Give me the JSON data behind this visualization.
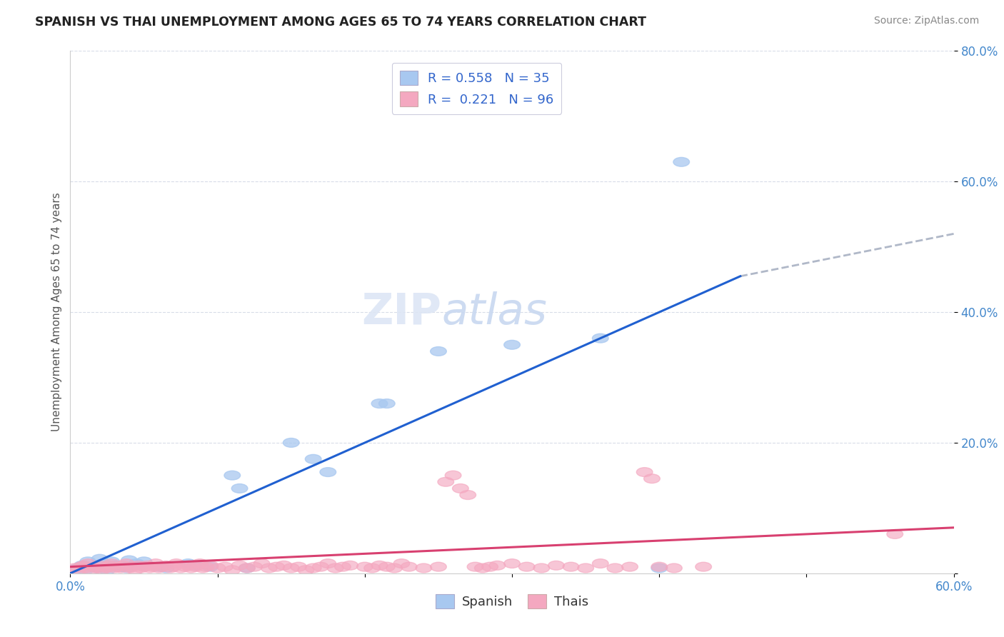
{
  "title": "SPANISH VS THAI UNEMPLOYMENT AMONG AGES 65 TO 74 YEARS CORRELATION CHART",
  "source": "Source: ZipAtlas.com",
  "ylabel": "Unemployment Among Ages 65 to 74 years",
  "xlim": [
    0.0,
    0.6
  ],
  "ylim": [
    0.0,
    0.8
  ],
  "xticks": [
    0.0,
    0.1,
    0.2,
    0.3,
    0.4,
    0.5,
    0.6
  ],
  "xticklabels": [
    "0.0%",
    "",
    "",
    "",
    "",
    "",
    "60.0%"
  ],
  "yticks": [
    0.0,
    0.2,
    0.4,
    0.6,
    0.8
  ],
  "yticklabels": [
    "",
    "20.0%",
    "40.0%",
    "60.0%",
    "80.0%"
  ],
  "spanish_color": "#a8c8f0",
  "thai_color": "#f4a8c0",
  "spanish_line_color": "#2060d0",
  "thai_line_color": "#d84070",
  "dashed_line_color": "#b0b8c8",
  "legend_R_spanish": "0.558",
  "legend_N_spanish": "35",
  "legend_R_thai": "0.221",
  "legend_N_thai": "96",
  "watermark_zip": "ZIP",
  "watermark_atlas": "atlas",
  "spanish_line": [
    [
      0.0,
      0.0
    ],
    [
      0.455,
      0.455
    ]
  ],
  "spanish_dash_line": [
    [
      0.455,
      0.455
    ],
    [
      0.6,
      0.52
    ]
  ],
  "thai_line": [
    [
      0.0,
      0.01
    ],
    [
      0.6,
      0.07
    ]
  ],
  "spanish_points": [
    [
      0.005,
      0.008
    ],
    [
      0.008,
      0.012
    ],
    [
      0.01,
      0.005
    ],
    [
      0.012,
      0.018
    ],
    [
      0.015,
      0.01
    ],
    [
      0.018,
      0.008
    ],
    [
      0.02,
      0.022
    ],
    [
      0.022,
      0.015
    ],
    [
      0.025,
      0.005
    ],
    [
      0.028,
      0.018
    ],
    [
      0.03,
      0.012
    ],
    [
      0.035,
      0.01
    ],
    [
      0.038,
      0.008
    ],
    [
      0.04,
      0.02
    ],
    [
      0.045,
      0.015
    ],
    [
      0.048,
      0.012
    ],
    [
      0.05,
      0.018
    ],
    [
      0.06,
      0.01
    ],
    [
      0.065,
      0.008
    ],
    [
      0.08,
      0.015
    ],
    [
      0.085,
      0.012
    ],
    [
      0.095,
      0.01
    ],
    [
      0.11,
      0.15
    ],
    [
      0.115,
      0.13
    ],
    [
      0.12,
      0.008
    ],
    [
      0.15,
      0.2
    ],
    [
      0.165,
      0.175
    ],
    [
      0.175,
      0.155
    ],
    [
      0.21,
      0.26
    ],
    [
      0.215,
      0.26
    ],
    [
      0.25,
      0.34
    ],
    [
      0.3,
      0.35
    ],
    [
      0.36,
      0.36
    ],
    [
      0.4,
      0.008
    ],
    [
      0.415,
      0.63
    ]
  ],
  "thai_points": [
    [
      0.003,
      0.008
    ],
    [
      0.005,
      0.005
    ],
    [
      0.007,
      0.01
    ],
    [
      0.009,
      0.012
    ],
    [
      0.01,
      0.008
    ],
    [
      0.012,
      0.015
    ],
    [
      0.014,
      0.005
    ],
    [
      0.016,
      0.01
    ],
    [
      0.018,
      0.008
    ],
    [
      0.02,
      0.012
    ],
    [
      0.022,
      0.006
    ],
    [
      0.024,
      0.01
    ],
    [
      0.025,
      0.008
    ],
    [
      0.027,
      0.012
    ],
    [
      0.028,
      0.015
    ],
    [
      0.03,
      0.008
    ],
    [
      0.032,
      0.01
    ],
    [
      0.034,
      0.008
    ],
    [
      0.036,
      0.012
    ],
    [
      0.038,
      0.015
    ],
    [
      0.04,
      0.008
    ],
    [
      0.042,
      0.01
    ],
    [
      0.044,
      0.005
    ],
    [
      0.046,
      0.012
    ],
    [
      0.048,
      0.008
    ],
    [
      0.05,
      0.01
    ],
    [
      0.052,
      0.012
    ],
    [
      0.054,
      0.008
    ],
    [
      0.056,
      0.01
    ],
    [
      0.058,
      0.015
    ],
    [
      0.06,
      0.008
    ],
    [
      0.062,
      0.01
    ],
    [
      0.065,
      0.012
    ],
    [
      0.068,
      0.008
    ],
    [
      0.07,
      0.01
    ],
    [
      0.072,
      0.015
    ],
    [
      0.075,
      0.008
    ],
    [
      0.078,
      0.01
    ],
    [
      0.08,
      0.012
    ],
    [
      0.082,
      0.008
    ],
    [
      0.085,
      0.01
    ],
    [
      0.088,
      0.015
    ],
    [
      0.09,
      0.008
    ],
    [
      0.092,
      0.01
    ],
    [
      0.095,
      0.012
    ],
    [
      0.1,
      0.008
    ],
    [
      0.105,
      0.01
    ],
    [
      0.11,
      0.005
    ],
    [
      0.115,
      0.012
    ],
    [
      0.12,
      0.008
    ],
    [
      0.125,
      0.01
    ],
    [
      0.13,
      0.015
    ],
    [
      0.135,
      0.008
    ],
    [
      0.14,
      0.01
    ],
    [
      0.145,
      0.012
    ],
    [
      0.15,
      0.008
    ],
    [
      0.155,
      0.01
    ],
    [
      0.16,
      0.005
    ],
    [
      0.165,
      0.008
    ],
    [
      0.17,
      0.01
    ],
    [
      0.175,
      0.015
    ],
    [
      0.18,
      0.008
    ],
    [
      0.185,
      0.01
    ],
    [
      0.19,
      0.012
    ],
    [
      0.2,
      0.01
    ],
    [
      0.205,
      0.008
    ],
    [
      0.21,
      0.012
    ],
    [
      0.215,
      0.01
    ],
    [
      0.22,
      0.008
    ],
    [
      0.225,
      0.015
    ],
    [
      0.23,
      0.01
    ],
    [
      0.24,
      0.008
    ],
    [
      0.25,
      0.01
    ],
    [
      0.255,
      0.14
    ],
    [
      0.26,
      0.15
    ],
    [
      0.265,
      0.13
    ],
    [
      0.27,
      0.12
    ],
    [
      0.275,
      0.01
    ],
    [
      0.28,
      0.008
    ],
    [
      0.285,
      0.01
    ],
    [
      0.29,
      0.012
    ],
    [
      0.3,
      0.015
    ],
    [
      0.31,
      0.01
    ],
    [
      0.32,
      0.008
    ],
    [
      0.33,
      0.012
    ],
    [
      0.34,
      0.01
    ],
    [
      0.35,
      0.008
    ],
    [
      0.36,
      0.015
    ],
    [
      0.37,
      0.008
    ],
    [
      0.38,
      0.01
    ],
    [
      0.39,
      0.155
    ],
    [
      0.395,
      0.145
    ],
    [
      0.4,
      0.01
    ],
    [
      0.41,
      0.008
    ],
    [
      0.43,
      0.01
    ],
    [
      0.56,
      0.06
    ]
  ],
  "background_color": "#ffffff",
  "plot_bg_color": "#ffffff",
  "grid_color": "#d8dce8"
}
